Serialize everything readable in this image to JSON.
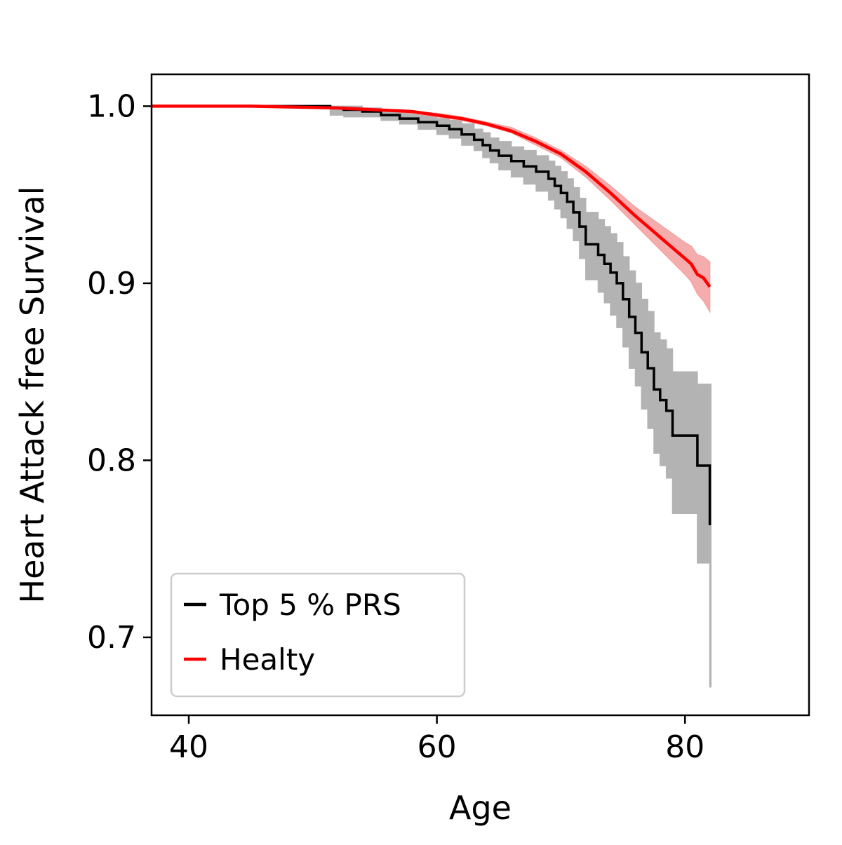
{
  "chart_data": {
    "type": "line",
    "xlabel": "Age",
    "ylabel": "Heart Attack free Survival",
    "xlim": [
      37,
      90
    ],
    "ylim": [
      0.656,
      1.018
    ],
    "xticks": [
      40,
      60,
      80
    ],
    "yticks": [
      0.7,
      0.8,
      0.9,
      1.0
    ],
    "xtick_labels": [
      "40",
      "60",
      "80"
    ],
    "ytick_labels": [
      "0.7",
      "0.8",
      "0.9",
      "1.0"
    ],
    "grid": false,
    "legend": {
      "placement": "lower-left",
      "entries": [
        "Top 5 % PRS",
        "Healty"
      ]
    },
    "series": [
      {
        "name": "Top 5 % PRS",
        "color": "#000000",
        "band_color": "#b3b3b3",
        "step": true,
        "x": [
          37,
          51.4,
          52.5,
          54,
          55.5,
          57,
          58.5,
          60,
          61,
          62,
          63,
          63.7,
          64.3,
          65,
          66,
          67,
          68,
          69,
          69.5,
          70,
          70.5,
          71,
          71.5,
          72,
          73,
          73.5,
          74,
          74.5,
          75,
          75.5,
          76,
          76.5,
          77,
          77.5,
          78,
          78.5,
          79,
          81,
          82,
          82.1
        ],
        "y": [
          1.0,
          0.999,
          0.998,
          0.997,
          0.995,
          0.993,
          0.991,
          0.989,
          0.987,
          0.984,
          0.981,
          0.978,
          0.975,
          0.972,
          0.969,
          0.966,
          0.963,
          0.959,
          0.955,
          0.951,
          0.946,
          0.94,
          0.932,
          0.922,
          0.916,
          0.911,
          0.906,
          0.9,
          0.891,
          0.881,
          0.872,
          0.861,
          0.852,
          0.84,
          0.834,
          0.828,
          0.814,
          0.797,
          0.764,
          0.764
        ],
        "lower": [
          1.0,
          0.995,
          0.994,
          0.994,
          0.992,
          0.99,
          0.987,
          0.984,
          0.982,
          0.978,
          0.975,
          0.971,
          0.968,
          0.964,
          0.96,
          0.956,
          0.952,
          0.947,
          0.942,
          0.937,
          0.931,
          0.924,
          0.914,
          0.902,
          0.895,
          0.889,
          0.882,
          0.875,
          0.864,
          0.852,
          0.842,
          0.829,
          0.818,
          0.804,
          0.797,
          0.79,
          0.77,
          0.742,
          0.672,
          0.672
        ],
        "upper": [
          1.0,
          1.0,
          1.0,
          0.999,
          0.998,
          0.997,
          0.995,
          0.993,
          0.992,
          0.99,
          0.987,
          0.985,
          0.982,
          0.98,
          0.977,
          0.975,
          0.972,
          0.969,
          0.966,
          0.963,
          0.959,
          0.954,
          0.948,
          0.94,
          0.936,
          0.932,
          0.928,
          0.923,
          0.915,
          0.907,
          0.9,
          0.891,
          0.884,
          0.872,
          0.868,
          0.863,
          0.85,
          0.843,
          0.843,
          0.843
        ]
      },
      {
        "name": "Healty",
        "color": "#ff0000",
        "band_color": "#f4a3a3",
        "step": false,
        "x": [
          37,
          45,
          52,
          55,
          58,
          60,
          62,
          64,
          66,
          68,
          70,
          72,
          74,
          76,
          77,
          78,
          79,
          80,
          80.5,
          81,
          81.5,
          82
        ],
        "y": [
          1.0,
          1.0,
          0.999,
          0.998,
          0.997,
          0.995,
          0.993,
          0.99,
          0.986,
          0.98,
          0.973,
          0.963,
          0.951,
          0.938,
          0.932,
          0.926,
          0.92,
          0.914,
          0.911,
          0.905,
          0.903,
          0.898
        ],
        "lower": [
          1.0,
          1.0,
          0.999,
          0.998,
          0.996,
          0.994,
          0.992,
          0.989,
          0.985,
          0.978,
          0.971,
          0.96,
          0.947,
          0.933,
          0.926,
          0.919,
          0.912,
          0.905,
          0.901,
          0.894,
          0.89,
          0.884
        ],
        "upper": [
          1.0,
          1.0,
          0.999,
          0.998,
          0.997,
          0.996,
          0.994,
          0.991,
          0.988,
          0.982,
          0.975,
          0.966,
          0.955,
          0.943,
          0.938,
          0.933,
          0.928,
          0.923,
          0.921,
          0.916,
          0.915,
          0.912
        ]
      }
    ]
  }
}
